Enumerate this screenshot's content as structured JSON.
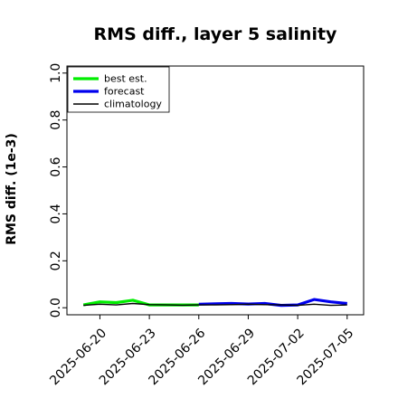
{
  "chart_data": {
    "type": "line",
    "title": "RMS diff., layer 5 salinity",
    "xlabel": "",
    "ylabel": "RMS diff. (1e-3)",
    "ylim": [
      -0.03,
      1.03
    ],
    "yticks": [
      0.0,
      0.2,
      0.4,
      0.6,
      0.8,
      1.0
    ],
    "ytick_labels": [
      "0.0",
      "0.2",
      "0.4",
      "0.6",
      "0.8",
      "1.0"
    ],
    "x_range": [
      "2025-06-18",
      "2025-07-06"
    ],
    "xticks": [
      "2025-06-20",
      "2025-06-23",
      "2025-06-26",
      "2025-06-29",
      "2025-07-02",
      "2025-07-05"
    ],
    "xtick_labels": [
      {
        "text": "2025-06-20",
        "color": "#000000"
      },
      {
        "text": "2025-06-23",
        "color": "#000000"
      },
      {
        "text": "2025-06-26",
        "color": "#228b22"
      },
      {
        "text": "2025-06-29",
        "color": "#000000"
      },
      {
        "text": "2025-07-02",
        "color": "#000000"
      },
      {
        "text": "2025-07-05",
        "color": "#000000"
      }
    ],
    "legend_position": "top-left",
    "series": [
      {
        "name": "best est.",
        "color": "#00ee00",
        "x": [
          "2025-06-19",
          "2025-06-20",
          "2025-06-21",
          "2025-06-22",
          "2025-06-23",
          "2025-06-24",
          "2025-06-25",
          "2025-06-26"
        ],
        "y": [
          0.012,
          0.025,
          0.022,
          0.032,
          0.012,
          0.012,
          0.012,
          0.012
        ]
      },
      {
        "name": "forecast",
        "color": "#0000ee",
        "x": [
          "2025-06-26",
          "2025-06-27",
          "2025-06-28",
          "2025-06-29",
          "2025-06-30",
          "2025-07-01",
          "2025-07-02",
          "2025-07-03",
          "2025-07-04",
          "2025-07-05"
        ],
        "y": [
          0.015,
          0.017,
          0.018,
          0.016,
          0.018,
          0.01,
          0.012,
          0.035,
          0.025,
          0.018
        ]
      },
      {
        "name": "climatology",
        "color": "#000000",
        "x": [
          "2025-06-19",
          "2025-06-20",
          "2025-06-21",
          "2025-06-22",
          "2025-06-23",
          "2025-06-24",
          "2025-06-25",
          "2025-06-26",
          "2025-06-27",
          "2025-06-28",
          "2025-06-29",
          "2025-06-30",
          "2025-07-01",
          "2025-07-02",
          "2025-07-03",
          "2025-07-04",
          "2025-07-05"
        ],
        "y": [
          0.01,
          0.015,
          0.012,
          0.018,
          0.013,
          0.012,
          0.011,
          0.012,
          0.012,
          0.013,
          0.015,
          0.013,
          0.012,
          0.01,
          0.015,
          0.01,
          0.012
        ]
      }
    ]
  }
}
